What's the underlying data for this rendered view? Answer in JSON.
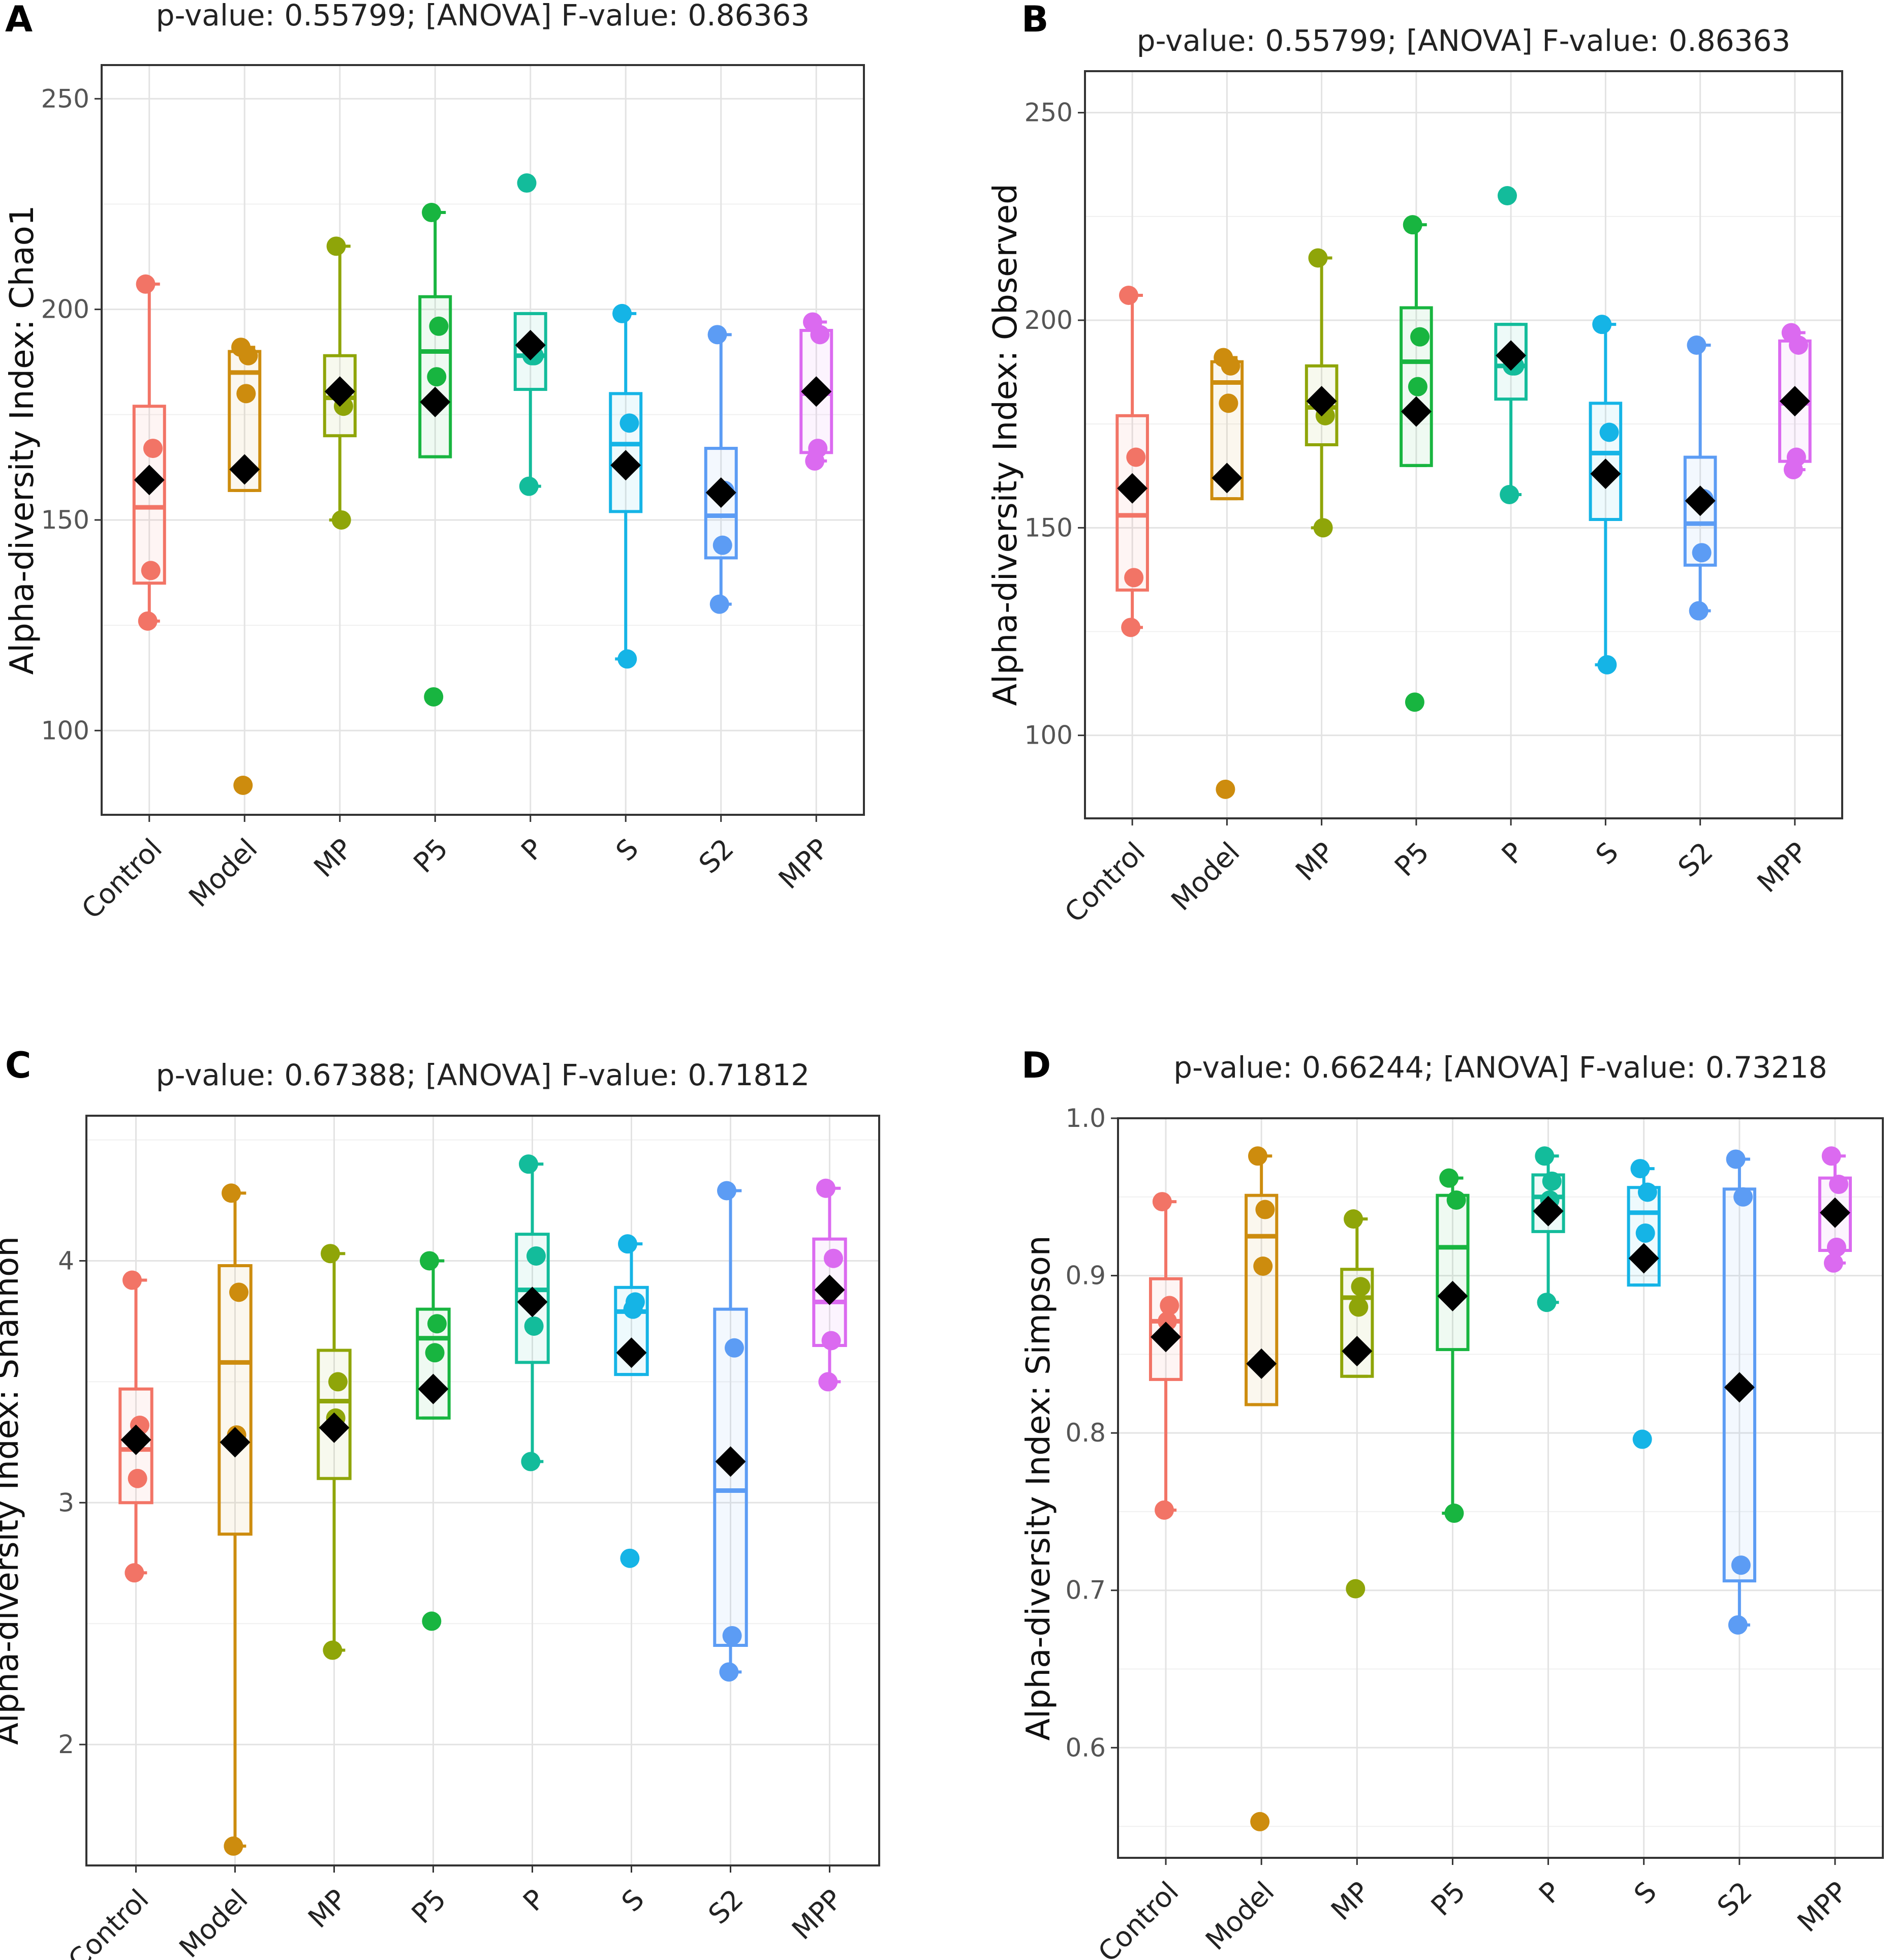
{
  "figure": {
    "colors": {
      "Control": "#F27466",
      "Model": "#CD8C0E",
      "MP": "#8FA509",
      "P5": "#18B540",
      "P": "#13BC9B",
      "S": "#15B4E6",
      "S2": "#5C9CF4",
      "MPP": "#DB6AF0",
      "mean_marker": "#000000"
    }
  },
  "chart_data": [
    {
      "panel": "A",
      "type": "box",
      "title": "p-value: 0.55799; [ANOVA] F-value: 0.86363",
      "ylabel": "Alpha-diversity Index: Chao1",
      "xlabel": "",
      "ylim": [
        80,
        258
      ],
      "yticks": [
        100,
        150,
        200,
        250
      ],
      "categories": [
        "Control",
        "Model",
        "MP",
        "P5",
        "P",
        "S",
        "S2",
        "MPP"
      ],
      "boxes": [
        {
          "q1": 135,
          "median": 153,
          "q3": 177,
          "whisker_low": 126,
          "whisker_high": 206,
          "mean": 159.5,
          "points": [
            206,
            167,
            138,
            126
          ]
        },
        {
          "q1": 157,
          "median": 185,
          "q3": 190,
          "whisker_low": 157,
          "whisker_high": 191,
          "mean": 162,
          "points": [
            191,
            189,
            180,
            87
          ]
        },
        {
          "q1": 170,
          "median": 179,
          "q3": 189,
          "whisker_low": 150,
          "whisker_high": 215,
          "mean": 180.5,
          "points": [
            215,
            177,
            150
          ]
        },
        {
          "q1": 165,
          "median": 190,
          "q3": 203,
          "whisker_low": 165,
          "whisker_high": 223,
          "mean": 178,
          "points": [
            223,
            196,
            184,
            108
          ]
        },
        {
          "q1": 181,
          "median": 189,
          "q3": 199,
          "whisker_low": 158,
          "whisker_high": 199,
          "mean": 191.5,
          "points": [
            230,
            189,
            189,
            158
          ]
        },
        {
          "q1": 152,
          "median": 168,
          "q3": 180,
          "whisker_low": 117,
          "whisker_high": 199,
          "mean": 163,
          "points": [
            199,
            173,
            117
          ]
        },
        {
          "q1": 141,
          "median": 151,
          "q3": 167,
          "whisker_low": 130,
          "whisker_high": 194,
          "mean": 156.5,
          "points": [
            194,
            157,
            144,
            130
          ]
        },
        {
          "q1": 166,
          "median": 180,
          "q3": 195,
          "whisker_low": 164,
          "whisker_high": 197,
          "mean": 180.5,
          "points": [
            197,
            194,
            167,
            164
          ]
        }
      ]
    },
    {
      "panel": "B",
      "type": "box",
      "title": "p-value: 0.55799; [ANOVA] F-value: 0.86363",
      "ylabel": "Alpha-diversity Index: Observed",
      "xlabel": "",
      "ylim": [
        80,
        260
      ],
      "yticks": [
        100,
        150,
        200,
        250
      ],
      "categories": [
        "Control",
        "Model",
        "MP",
        "P5",
        "P",
        "S",
        "S2",
        "MPP"
      ],
      "boxes": [
        {
          "q1": 135,
          "median": 153,
          "q3": 177,
          "whisker_low": 126,
          "whisker_high": 206,
          "mean": 159.5,
          "points": [
            206,
            167,
            138,
            126
          ]
        },
        {
          "q1": 157,
          "median": 185,
          "q3": 190,
          "whisker_low": 157,
          "whisker_high": 191,
          "mean": 162,
          "points": [
            191,
            189,
            180,
            87
          ]
        },
        {
          "q1": 170,
          "median": 179,
          "q3": 189,
          "whisker_low": 150,
          "whisker_high": 215,
          "mean": 180.5,
          "points": [
            215,
            177,
            150
          ]
        },
        {
          "q1": 165,
          "median": 190,
          "q3": 203,
          "whisker_low": 165,
          "whisker_high": 223,
          "mean": 178,
          "points": [
            223,
            196,
            184,
            108
          ]
        },
        {
          "q1": 181,
          "median": 189,
          "q3": 199,
          "whisker_low": 158,
          "whisker_high": 199,
          "mean": 191.5,
          "points": [
            230,
            189,
            189,
            158
          ]
        },
        {
          "q1": 152,
          "median": 168,
          "q3": 180,
          "whisker_low": 117,
          "whisker_high": 199,
          "mean": 163,
          "points": [
            199,
            173,
            117
          ]
        },
        {
          "q1": 141,
          "median": 151,
          "q3": 167,
          "whisker_low": 130,
          "whisker_high": 194,
          "mean": 156.5,
          "points": [
            194,
            157,
            144,
            130
          ]
        },
        {
          "q1": 166,
          "median": 180,
          "q3": 195,
          "whisker_low": 164,
          "whisker_high": 197,
          "mean": 180.5,
          "points": [
            197,
            194,
            167,
            164
          ]
        }
      ]
    },
    {
      "panel": "C",
      "type": "box",
      "title": "p-value: 0.67388; [ANOVA] F-value: 0.71812",
      "ylabel": "Alpha-diversity Index: Shannon",
      "xlabel": "",
      "ylim": [
        1.5,
        4.6
      ],
      "yticks": [
        2,
        3,
        4
      ],
      "categories": [
        "Control",
        "Model",
        "MP",
        "P5",
        "P",
        "S",
        "S2",
        "MPP"
      ],
      "boxes": [
        {
          "q1": 3.0,
          "median": 3.22,
          "q3": 3.47,
          "whisker_low": 2.71,
          "whisker_high": 3.92,
          "mean": 3.26,
          "points": [
            3.92,
            3.32,
            3.1,
            2.71
          ]
        },
        {
          "q1": 2.87,
          "median": 3.58,
          "q3": 3.98,
          "whisker_low": 1.58,
          "whisker_high": 4.28,
          "mean": 3.25,
          "points": [
            4.28,
            3.87,
            3.28,
            1.58
          ]
        },
        {
          "q1": 3.1,
          "median": 3.42,
          "q3": 3.63,
          "whisker_low": 2.39,
          "whisker_high": 4.03,
          "mean": 3.31,
          "points": [
            4.03,
            3.5,
            3.35,
            2.39
          ]
        },
        {
          "q1": 3.35,
          "median": 3.68,
          "q3": 3.8,
          "whisker_low": 3.35,
          "whisker_high": 4.0,
          "mean": 3.47,
          "points": [
            4.0,
            3.74,
            3.62,
            2.51
          ]
        },
        {
          "q1": 3.58,
          "median": 3.88,
          "q3": 4.11,
          "whisker_low": 3.17,
          "whisker_high": 4.4,
          "mean": 3.83,
          "points": [
            4.4,
            4.02,
            3.73,
            3.17
          ]
        },
        {
          "q1": 3.53,
          "median": 3.79,
          "q3": 3.89,
          "whisker_low": 3.53,
          "whisker_high": 4.07,
          "mean": 3.62,
          "points": [
            4.07,
            3.83,
            3.8,
            2.77
          ]
        },
        {
          "q1": 2.41,
          "median": 3.05,
          "q3": 3.8,
          "whisker_low": 2.3,
          "whisker_high": 4.29,
          "mean": 3.17,
          "points": [
            4.29,
            3.64,
            2.45,
            2.3
          ]
        },
        {
          "q1": 3.65,
          "median": 3.83,
          "q3": 4.09,
          "whisker_low": 3.5,
          "whisker_high": 4.3,
          "mean": 3.88,
          "points": [
            4.3,
            4.01,
            3.67,
            3.5
          ]
        }
      ]
    },
    {
      "panel": "D",
      "type": "box",
      "title": "p-value: 0.66244; [ANOVA] F-value: 0.73218",
      "ylabel": "Alpha-diversity Index: Simpson",
      "xlabel": "",
      "ylim": [
        0.53,
        1.0
      ],
      "yticks": [
        0.6,
        0.7,
        0.8,
        0.9,
        1.0
      ],
      "yticklabels": [
        "0.6",
        "0.7",
        "0.8",
        "0.9",
        "1.0"
      ],
      "categories": [
        "Control",
        "Model",
        "MP",
        "P5",
        "P",
        "S",
        "S2",
        "MPP"
      ],
      "boxes": [
        {
          "q1": 0.834,
          "median": 0.871,
          "q3": 0.898,
          "whisker_low": 0.751,
          "whisker_high": 0.947,
          "mean": 0.861,
          "points": [
            0.947,
            0.881,
            0.871,
            0.751
          ]
        },
        {
          "q1": 0.818,
          "median": 0.925,
          "q3": 0.951,
          "whisker_low": 0.818,
          "whisker_high": 0.976,
          "mean": 0.844,
          "points": [
            0.976,
            0.942,
            0.906,
            0.553
          ]
        },
        {
          "q1": 0.836,
          "median": 0.886,
          "q3": 0.904,
          "whisker_low": 0.836,
          "whisker_high": 0.936,
          "mean": 0.852,
          "points": [
            0.936,
            0.893,
            0.88,
            0.701
          ]
        },
        {
          "q1": 0.853,
          "median": 0.918,
          "q3": 0.951,
          "whisker_low": 0.749,
          "whisker_high": 0.962,
          "mean": 0.887,
          "points": [
            0.962,
            0.948,
            0.749
          ]
        },
        {
          "q1": 0.928,
          "median": 0.95,
          "q3": 0.964,
          "whisker_low": 0.883,
          "whisker_high": 0.976,
          "mean": 0.941,
          "points": [
            0.976,
            0.96,
            0.948,
            0.883
          ]
        },
        {
          "q1": 0.894,
          "median": 0.94,
          "q3": 0.956,
          "whisker_low": 0.894,
          "whisker_high": 0.968,
          "mean": 0.911,
          "points": [
            0.968,
            0.953,
            0.927,
            0.796
          ]
        },
        {
          "q1": 0.706,
          "median": 0.829,
          "q3": 0.955,
          "whisker_low": 0.678,
          "whisker_high": 0.974,
          "mean": 0.829,
          "points": [
            0.974,
            0.95,
            0.716,
            0.678
          ]
        },
        {
          "q1": 0.916,
          "median": 0.94,
          "q3": 0.962,
          "whisker_low": 0.908,
          "whisker_high": 0.976,
          "mean": 0.94,
          "points": [
            0.976,
            0.958,
            0.918,
            0.908
          ]
        }
      ]
    }
  ]
}
